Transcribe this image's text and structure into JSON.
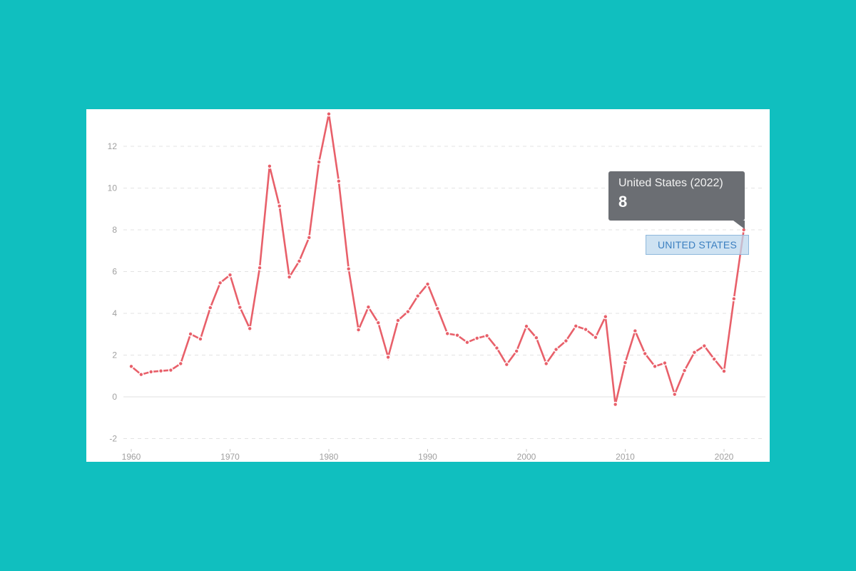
{
  "chart_data": {
    "type": "line",
    "title": "",
    "xlabel": "",
    "ylabel": "",
    "series": [
      {
        "name": "United States",
        "color": "#e8606a",
        "x": [
          1960,
          1961,
          1962,
          1963,
          1964,
          1965,
          1966,
          1967,
          1968,
          1969,
          1970,
          1971,
          1972,
          1973,
          1974,
          1975,
          1976,
          1977,
          1978,
          1979,
          1980,
          1981,
          1982,
          1983,
          1984,
          1985,
          1986,
          1987,
          1988,
          1989,
          1990,
          1991,
          1992,
          1993,
          1994,
          1995,
          1996,
          1997,
          1998,
          1999,
          2000,
          2001,
          2002,
          2003,
          2004,
          2005,
          2006,
          2007,
          2008,
          2009,
          2010,
          2011,
          2012,
          2013,
          2014,
          2015,
          2016,
          2017,
          2018,
          2019,
          2020,
          2021,
          2022
        ],
        "values": [
          1.46,
          1.07,
          1.2,
          1.24,
          1.28,
          1.59,
          3.01,
          2.77,
          4.27,
          5.46,
          5.84,
          4.29,
          3.27,
          6.18,
          11.05,
          9.14,
          5.74,
          6.5,
          7.63,
          11.25,
          13.55,
          10.33,
          6.13,
          3.21,
          4.3,
          3.55,
          1.9,
          3.66,
          4.08,
          4.83,
          5.4,
          4.23,
          3.03,
          2.95,
          2.61,
          2.81,
          2.93,
          2.34,
          1.55,
          2.19,
          3.38,
          2.83,
          1.59,
          2.27,
          2.68,
          3.39,
          3.23,
          2.85,
          3.84,
          -0.36,
          1.64,
          3.16,
          2.07,
          1.46,
          1.62,
          0.12,
          1.26,
          2.13,
          2.44,
          1.81,
          1.23,
          4.7,
          8.0
        ]
      }
    ],
    "y_ticks": [
      -2,
      0,
      2,
      4,
      6,
      8,
      10,
      12
    ],
    "x_ticks": [
      1960,
      1970,
      1980,
      1990,
      2000,
      2010,
      2020
    ],
    "ylim": [
      -2,
      13.6
    ],
    "xlim": [
      1960,
      2022
    ],
    "grid": "horizontal dashed",
    "legend": "none (inline series label)"
  },
  "tooltip": {
    "title": "United States (2022)",
    "value": "8"
  },
  "series_label": "UNITED STATES",
  "colors": {
    "background": "#10bfbf",
    "card": "#ffffff",
    "line": "#e8606a",
    "tooltip_bg": "#6b6e73",
    "label_text": "#3b7fc0"
  }
}
